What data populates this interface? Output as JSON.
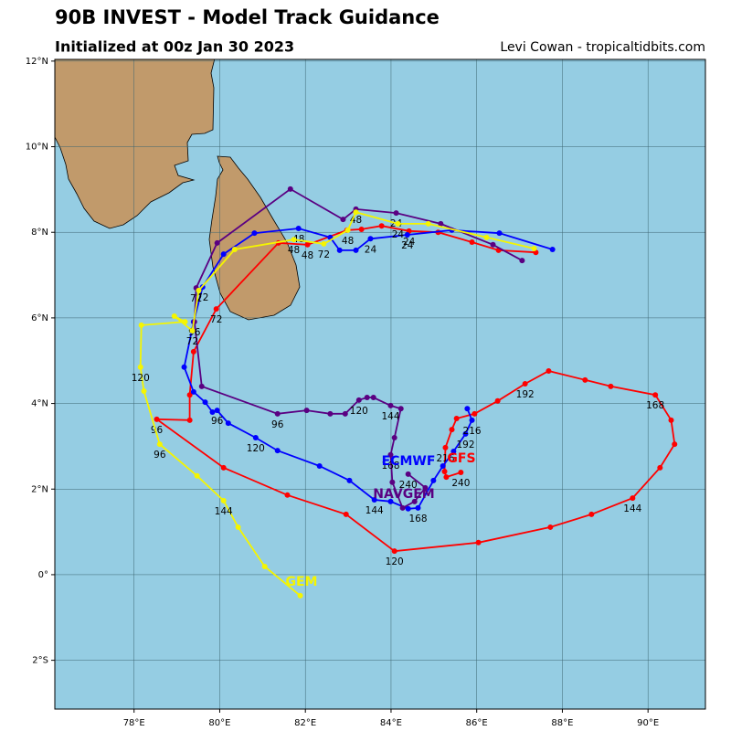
{
  "chart_data": {
    "type": "line",
    "title": "90B INVEST - Model Track Guidance",
    "subtitle": "Initialized at 00z Jan 30 2023",
    "credit": "Levi Cowan - tropicaltidbits.com",
    "xlim": [
      76.15,
      91.34
    ],
    "ylim": [
      -3.14,
      12.04
    ],
    "xticks": [
      {
        "value": 78,
        "label": "78°E"
      },
      {
        "value": 80,
        "label": "80°E"
      },
      {
        "value": 82,
        "label": "82°E"
      },
      {
        "value": 84,
        "label": "84°E"
      },
      {
        "value": 86,
        "label": "86°E"
      },
      {
        "value": 88,
        "label": "88°E"
      },
      {
        "value": 90,
        "label": "90°E"
      }
    ],
    "yticks": [
      {
        "value": -2,
        "label": "2°S"
      },
      {
        "value": 0,
        "label": "0°"
      },
      {
        "value": 2,
        "label": "2°N"
      },
      {
        "value": 4,
        "label": "4°N"
      },
      {
        "value": 6,
        "label": "6°N"
      },
      {
        "value": 8,
        "label": "8°N"
      },
      {
        "value": 10,
        "label": "10°N"
      },
      {
        "value": 12,
        "label": "12°N"
      }
    ],
    "grid": true,
    "series": [
      {
        "name": "GFS",
        "color": "#ff0000",
        "x": [
          87.38,
          86.51,
          85.89,
          85.1,
          84.42,
          83.78,
          83.31,
          82.97,
          82.05,
          81.37,
          79.92,
          79.39,
          79.3,
          79.3,
          78.53,
          80.09,
          81.58,
          82.95,
          84.08,
          86.04,
          87.72,
          88.68,
          89.64,
          90.28,
          90.62,
          90.54,
          90.17,
          89.13,
          88.53,
          87.68,
          87.13,
          86.49,
          85.95,
          85.53,
          85.42,
          85.27,
          85.25,
          85.29,
          85.63
        ],
        "values": [
          7.53,
          7.58,
          7.77,
          8.0,
          8.03,
          8.15,
          8.07,
          8.05,
          7.71,
          7.75,
          6.21,
          5.21,
          4.2,
          3.61,
          3.63,
          2.5,
          1.86,
          1.41,
          0.55,
          0.75,
          1.11,
          1.41,
          1.79,
          2.5,
          3.05,
          3.61,
          4.2,
          4.4,
          4.55,
          4.76,
          4.46,
          4.06,
          3.76,
          3.65,
          3.39,
          2.97,
          2.41,
          2.28,
          2.39
        ],
        "labels": [
          null,
          null,
          null,
          null,
          "24",
          null,
          null,
          null,
          "48",
          null,
          "72",
          null,
          null,
          null,
          "96",
          null,
          null,
          null,
          "120",
          null,
          null,
          null,
          "144",
          null,
          null,
          null,
          "168",
          null,
          null,
          null,
          "192",
          null,
          null,
          null,
          null,
          "216",
          null,
          null,
          "240"
        ]
      },
      {
        "name": "ECMWF",
        "color": "#0000ff",
        "x": [
          87.77,
          86.53,
          85.42,
          84.38,
          83.52,
          83.18,
          82.8,
          82.58,
          81.84,
          80.81,
          80.09,
          79.6,
          79.39,
          79.17,
          79.39,
          79.66,
          79.83,
          79.94,
          80.2,
          80.84,
          81.35,
          82.33,
          83.03,
          83.61,
          83.99,
          84.4,
          84.63,
          84.99,
          85.21,
          85.46,
          85.74,
          85.89,
          85.78
        ],
        "values": [
          7.6,
          7.98,
          8.05,
          7.94,
          7.85,
          7.58,
          7.58,
          7.88,
          8.09,
          7.98,
          7.49,
          6.72,
          5.91,
          4.85,
          4.27,
          4.03,
          3.8,
          3.84,
          3.54,
          3.2,
          2.9,
          2.54,
          2.2,
          1.75,
          1.71,
          1.54,
          1.56,
          2.2,
          2.54,
          2.88,
          3.29,
          3.61,
          3.88
        ],
        "labels": [
          null,
          null,
          null,
          "24",
          "24",
          null,
          null,
          null,
          "48",
          null,
          null,
          "72",
          null,
          null,
          null,
          null,
          null,
          "96",
          null,
          "120",
          null,
          null,
          null,
          "144",
          null,
          null,
          "168",
          null,
          null,
          null,
          "192",
          "216",
          null
        ]
      },
      {
        "name": "NAVGEM",
        "color": "#5a0082",
        "x": [
          87.06,
          86.38,
          85.16,
          84.12,
          83.18,
          82.88,
          81.65,
          79.94,
          79.45,
          79.41,
          79.58,
          81.35,
          82.03,
          82.58,
          82.93,
          83.25,
          83.44,
          83.59,
          83.99,
          84.23,
          84.08,
          83.99,
          84.03,
          84.27,
          84.55,
          84.8,
          84.4
        ],
        "values": [
          7.34,
          7.71,
          8.2,
          8.45,
          8.54,
          8.3,
          9.01,
          7.75,
          6.7,
          5.91,
          4.4,
          3.76,
          3.84,
          3.76,
          3.76,
          4.08,
          4.14,
          4.14,
          3.95,
          3.88,
          3.2,
          2.8,
          2.16,
          1.56,
          1.71,
          2.03,
          2.35
        ],
        "labels": [
          null,
          null,
          null,
          "24",
          "48",
          null,
          null,
          null,
          "72",
          "96",
          null,
          "96",
          null,
          null,
          null,
          "120",
          null,
          null,
          "144",
          null,
          null,
          "168",
          null,
          null,
          null,
          null,
          "240"
        ]
      },
      {
        "name": "GEM",
        "color": "#f5f500",
        "x": [
          87.34,
          86.23,
          84.87,
          84.16,
          83.18,
          82.99,
          82.43,
          81.73,
          80.35,
          79.51,
          79.36,
          78.94,
          79.19,
          78.17,
          78.15,
          78.23,
          78.6,
          79.47,
          80.09,
          80.43,
          81.05,
          81.88
        ],
        "values": [
          7.62,
          7.88,
          8.2,
          8.2,
          8.47,
          8.05,
          7.73,
          7.83,
          7.6,
          6.64,
          5.7,
          6.04,
          5.91,
          5.83,
          4.85,
          4.29,
          3.05,
          2.31,
          1.73,
          1.11,
          0.19,
          -0.49
        ],
        "labels": [
          null,
          null,
          null,
          "24",
          null,
          "48",
          "72",
          "48",
          null,
          null,
          "72",
          null,
          null,
          null,
          "120",
          null,
          "96",
          null,
          "144",
          null,
          null,
          null
        ]
      }
    ]
  }
}
